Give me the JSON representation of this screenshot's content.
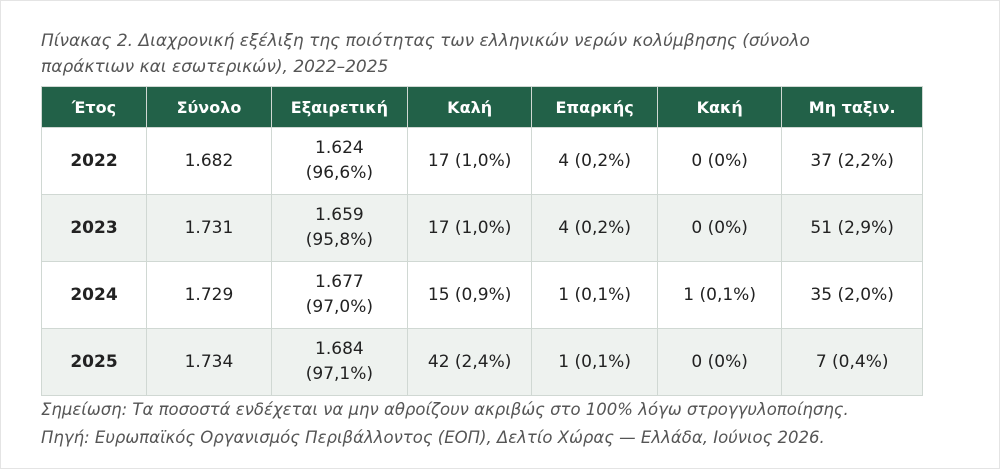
{
  "caption": "Πίνακας 2. Διαχρονική εξέλιξη της ποιότητας των ελληνικών νερών κολύμβησης (σύνολο παράκτιων και εσωτερικών), 2022–2025",
  "table": {
    "header": [
      "Έτος",
      "Σύνολο",
      "Εξαιρετική",
      "Καλή",
      "Επαρκής",
      "Κακή",
      "Μη ταξιν."
    ],
    "rows": [
      [
        "2022",
        "1.682",
        "1.624 (96,6%)",
        "17 (1,0%)",
        "4 (0,2%)",
        "0 (0%)",
        "37 (2,2%)"
      ],
      [
        "2023",
        "1.731",
        "1.659 (95,8%)",
        "17 (1,0%)",
        "4 (0,2%)",
        "0 (0%)",
        "51 (2,9%)"
      ],
      [
        "2024",
        "1.729",
        "1.677 (97,0%)",
        "15 (0,9%)",
        "1 (0,1%)",
        "1 (0,1%)",
        "35 (2,0%)"
      ],
      [
        "2025",
        "1.734",
        "1.684 (97,1%)",
        "42 (2,4%)",
        "1 (0,1%)",
        "0 (0%)",
        "7 (0,4%)"
      ]
    ]
  },
  "notes": [
    "Σημείωση: Τα ποσοστά ενδέχεται να μην αθροίζουν ακριβώς στο 100% λόγω στρογγυλοποίησης.",
    "Πηγή: Ευρωπαϊκός Οργανισμός Περιβάλλοντος (ΕΟΠ), Δελτίο Χώρας — Ελλάδα, Ιούνιος 2026."
  ]
}
